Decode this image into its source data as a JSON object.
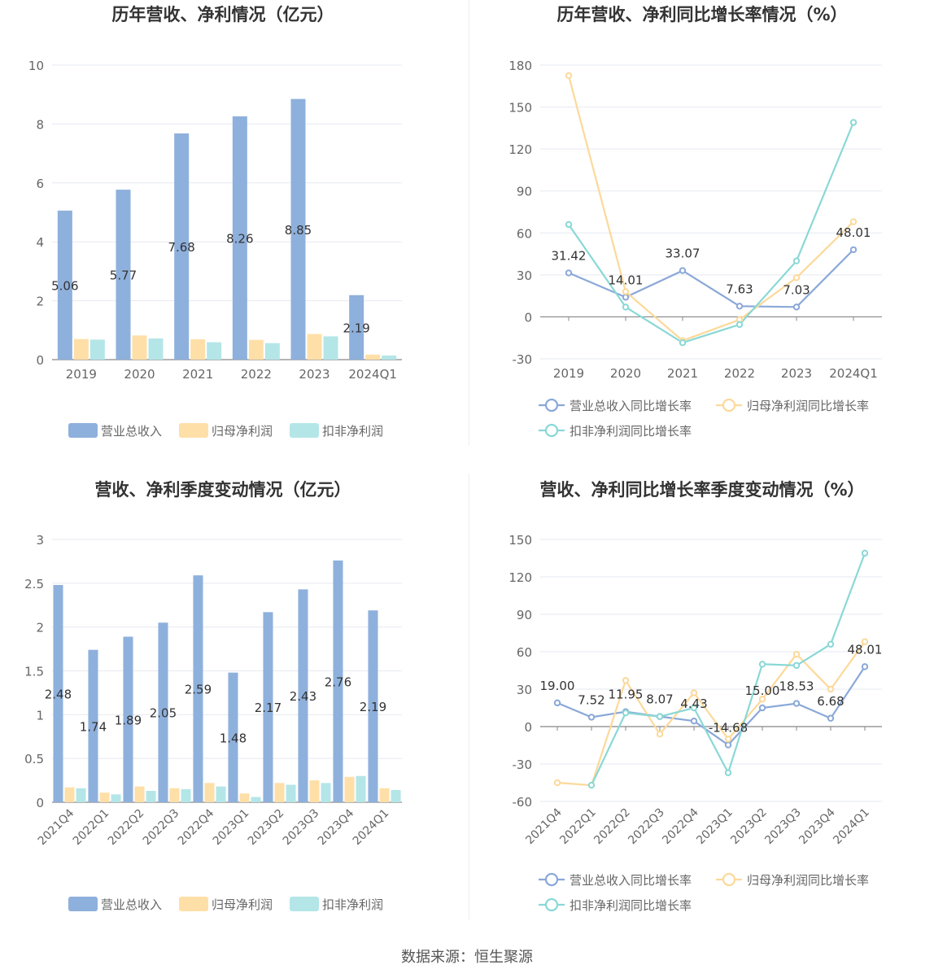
{
  "colors": {
    "revenue": "#8eb0dc",
    "profit": "#ffdfa8",
    "profit_ex": "#b4e6e8",
    "revenue_line": "#8aa8d8",
    "profit_line": "#fcd99a",
    "profit_ex_line": "#8ad8d6",
    "grid": "#e6e9f0",
    "axis": "#888888",
    "tick_text": "#666666",
    "title": "#333333",
    "label": "#333333"
  },
  "source_text": "数据来源：恒生聚源",
  "chart_data": [
    {
      "type": "bar",
      "title": "历年营收、净利情况（亿元）",
      "categories": [
        "2019",
        "2020",
        "2021",
        "2022",
        "2023",
        "2024Q1"
      ],
      "series": [
        {
          "name": "营业总收入",
          "values": [
            5.06,
            5.77,
            7.68,
            8.26,
            8.85,
            2.19
          ],
          "labels": [
            "5.06",
            "5.77",
            "7.68",
            "8.26",
            "8.85",
            "2.19"
          ]
        },
        {
          "name": "归母净利润",
          "values": [
            0.7,
            0.82,
            0.69,
            0.67,
            0.87,
            0.17
          ]
        },
        {
          "name": "扣非净利润",
          "values": [
            0.68,
            0.72,
            0.59,
            0.56,
            0.79,
            0.14
          ]
        }
      ],
      "ylim": [
        0,
        10
      ],
      "yticks": [
        "0",
        "2",
        "4",
        "6",
        "8",
        "10"
      ],
      "ytick_values": [
        0,
        2,
        4,
        6,
        8,
        10
      ],
      "grid": true,
      "legend": "bottom"
    },
    {
      "type": "line",
      "title": "历年营收、净利同比增长率情况（%）",
      "categories": [
        "2019",
        "2020",
        "2021",
        "2022",
        "2023",
        "2024Q1"
      ],
      "series": [
        {
          "name": "营业总收入同比增长率",
          "values": [
            31.42,
            14.01,
            33.07,
            7.63,
            7.03,
            48.01
          ],
          "labels": [
            "31.42",
            "14.01",
            "33.07",
            "7.63",
            "7.03",
            "48.01"
          ]
        },
        {
          "name": "归母净利润同比增长率",
          "values": [
            172.5,
            18.0,
            -17.0,
            -2.0,
            28.0,
            68.0
          ]
        },
        {
          "name": "扣非净利润同比增长率",
          "values": [
            66.0,
            7.0,
            -18.5,
            -5.5,
            40.0,
            139.0
          ]
        }
      ],
      "ylim": [
        -30,
        180
      ],
      "yticks": [
        "-30",
        "0",
        "30",
        "60",
        "90",
        "120",
        "150",
        "180"
      ],
      "ytick_values": [
        -30,
        0,
        30,
        60,
        90,
        120,
        150,
        180
      ],
      "grid": true,
      "legend": "bottom"
    },
    {
      "type": "bar",
      "title": "营收、净利季度变动情况（亿元）",
      "categories": [
        "2021Q4",
        "2022Q1",
        "2022Q2",
        "2022Q3",
        "2022Q4",
        "2023Q1",
        "2023Q2",
        "2023Q3",
        "2023Q4",
        "2024Q1"
      ],
      "series": [
        {
          "name": "营业总收入",
          "values": [
            2.48,
            1.74,
            1.89,
            2.05,
            2.59,
            1.48,
            2.17,
            2.43,
            2.76,
            2.19
          ],
          "labels": [
            "2.48",
            "1.74",
            "1.89",
            "2.05",
            "2.59",
            "1.48",
            "2.17",
            "2.43",
            "2.76",
            "2.19"
          ]
        },
        {
          "name": "归母净利润",
          "values": [
            0.17,
            0.11,
            0.18,
            0.16,
            0.22,
            0.1,
            0.22,
            0.25,
            0.29,
            0.16
          ]
        },
        {
          "name": "扣非净利润",
          "values": [
            0.16,
            0.09,
            0.13,
            0.15,
            0.18,
            0.06,
            0.2,
            0.22,
            0.3,
            0.14
          ]
        }
      ],
      "ylim": [
        0,
        3
      ],
      "yticks": [
        "0",
        "0.5",
        "1",
        "1.5",
        "2",
        "2.5",
        "3"
      ],
      "ytick_values": [
        0,
        0.5,
        1,
        1.5,
        2,
        2.5,
        3
      ],
      "grid": true,
      "legend": "bottom"
    },
    {
      "type": "line",
      "title": "营收、净利同比增长率季度变动情况（%）",
      "categories": [
        "2021Q4",
        "2022Q1",
        "2022Q2",
        "2022Q3",
        "2022Q4",
        "2023Q1",
        "2023Q2",
        "2023Q3",
        "2023Q4",
        "2024Q1"
      ],
      "series": [
        {
          "name": "营业总收入同比增长率",
          "values": [
            19.0,
            7.52,
            11.95,
            8.07,
            4.43,
            -14.68,
            15.0,
            18.53,
            6.68,
            48.01
          ],
          "labels": [
            "19.00",
            "7.52",
            "11.95",
            "8.07",
            "4.43",
            "-14.68",
            "15.00",
            "18.53",
            "6.68",
            "48.01"
          ]
        },
        {
          "name": "归母净利润同比增长率",
          "values": [
            -45.0,
            -47.0,
            37.0,
            -6.0,
            27.0,
            -10.0,
            22.0,
            58.0,
            30.0,
            68.0
          ]
        },
        {
          "name": "扣非净利润同比增长率",
          "values": [
            null,
            -47.0,
            11.0,
            8.0,
            15.0,
            -37.0,
            50.0,
            49.0,
            66.0,
            139.0
          ]
        }
      ],
      "ylim": [
        -60,
        150
      ],
      "yticks": [
        "-60",
        "-30",
        "0",
        "30",
        "60",
        "90",
        "120",
        "150"
      ],
      "ytick_values": [
        -60,
        -30,
        0,
        30,
        60,
        90,
        120,
        150
      ],
      "grid": true,
      "legend": "bottom"
    }
  ]
}
